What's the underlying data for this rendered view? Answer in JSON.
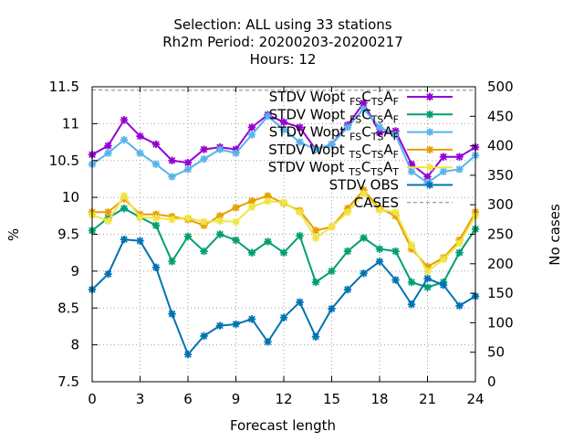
{
  "chart_data": {
    "type": "line",
    "title_lines": [
      "Selection: ALL using    33 stations",
      "Rh2m   Period: 20200203-20200217",
      "Hours:  12"
    ],
    "xlabel": "Forecast length",
    "ylabel": "%",
    "y2label": "No cases",
    "xlim": [
      0,
      24
    ],
    "ylim": [
      7.5,
      11.5
    ],
    "y2lim": [
      0,
      500
    ],
    "xticks": [
      0,
      3,
      6,
      9,
      12,
      15,
      18,
      21,
      24
    ],
    "yticks": [
      7.5,
      8,
      8.5,
      9,
      9.5,
      10,
      10.5,
      11,
      11.5
    ],
    "y2ticks": [
      0,
      50,
      100,
      150,
      200,
      250,
      300,
      350,
      400,
      450,
      500
    ],
    "grid": true,
    "legend_position": "top-right",
    "x": [
      0,
      1,
      2,
      3,
      4,
      5,
      6,
      7,
      8,
      9,
      10,
      11,
      12,
      13,
      14,
      15,
      16,
      17,
      18,
      19,
      20,
      21,
      22,
      23,
      24
    ],
    "series": [
      {
        "legend_main": "STDV Wopt",
        "legend_segments": [
          [
            "FS",
            "sub"
          ],
          [
            "C",
            ""
          ],
          [
            "TS",
            "sub"
          ],
          [
            "A",
            ""
          ],
          [
            "F",
            "sub"
          ]
        ],
        "color": "#9400d3",
        "axis": "y1",
        "values": [
          10.58,
          10.7,
          11.05,
          10.83,
          10.72,
          10.5,
          10.47,
          10.65,
          10.68,
          10.65,
          10.95,
          11.12,
          11.02,
          10.95,
          10.65,
          10.72,
          10.98,
          11.28,
          10.88,
          10.9,
          10.45,
          10.28,
          10.55,
          10.55,
          10.68
        ]
      },
      {
        "legend_main": "STDV Wopt",
        "legend_segments": [
          [
            "FS",
            "sub"
          ],
          [
            "C",
            ""
          ],
          [
            "TS",
            "sub"
          ],
          [
            "A",
            ""
          ],
          [
            "F",
            "sub"
          ]
        ],
        "color": "#009e73",
        "axis": "y1",
        "values": [
          9.55,
          9.72,
          9.85,
          9.73,
          9.62,
          9.13,
          9.47,
          9.27,
          9.5,
          9.42,
          9.25,
          9.4,
          9.25,
          9.48,
          8.85,
          9.0,
          9.27,
          9.45,
          9.3,
          9.27,
          8.85,
          8.78,
          8.85,
          9.25,
          9.57
        ]
      },
      {
        "legend_main": "STDV Wopt",
        "legend_segments": [
          [
            "FS",
            "sub"
          ],
          [
            "C",
            ""
          ],
          [
            "TS",
            "sub"
          ],
          [
            "A",
            ""
          ],
          [
            "F",
            "sub"
          ]
        ],
        "color": "#56b4e9",
        "axis": "y1",
        "values": [
          10.45,
          10.6,
          10.78,
          10.6,
          10.45,
          10.28,
          10.38,
          10.52,
          10.65,
          10.6,
          10.85,
          11.1,
          10.92,
          10.75,
          10.65,
          10.72,
          10.95,
          11.2,
          10.95,
          10.85,
          10.35,
          10.2,
          10.35,
          10.38,
          10.57
        ]
      },
      {
        "legend_main": "STDV Wopt",
        "legend_segments": [
          [
            "TS",
            "sub"
          ],
          [
            "C",
            ""
          ],
          [
            "TS",
            "sub"
          ],
          [
            "A",
            ""
          ],
          [
            "F",
            "sub"
          ]
        ],
        "color": "#e69f00",
        "axis": "y1",
        "values": [
          9.8,
          9.8,
          9.98,
          9.77,
          9.77,
          9.74,
          9.7,
          9.62,
          9.75,
          9.86,
          9.95,
          10.02,
          9.92,
          9.82,
          9.55,
          9.6,
          9.85,
          10.1,
          9.85,
          9.75,
          9.3,
          9.06,
          9.18,
          9.42,
          9.8
        ]
      },
      {
        "legend_main": "STDV Wopt",
        "legend_segments": [
          [
            "TS",
            "sub"
          ],
          [
            "C",
            ""
          ],
          [
            "TS",
            "sub"
          ],
          [
            "A",
            ""
          ],
          [
            "T",
            "sub"
          ]
        ],
        "color": "#f0e442",
        "axis": "y1",
        "values": [
          9.76,
          9.68,
          10.02,
          9.73,
          9.72,
          9.7,
          9.72,
          9.67,
          9.68,
          9.67,
          9.87,
          9.95,
          9.93,
          9.8,
          9.45,
          9.6,
          9.8,
          10.05,
          9.83,
          9.8,
          9.35,
          9.0,
          9.16,
          9.38,
          9.75
        ]
      },
      {
        "legend_main": "STDV OBS",
        "legend_segments": [],
        "color": "#0072b2",
        "axis": "y1",
        "values": [
          8.75,
          8.96,
          9.43,
          9.41,
          9.05,
          8.42,
          7.87,
          8.12,
          8.26,
          8.28,
          8.35,
          8.04,
          8.37,
          8.58,
          8.11,
          8.49,
          8.75,
          8.97,
          9.13,
          8.88,
          8.55,
          8.9,
          8.81,
          8.53,
          8.66
        ]
      },
      {
        "legend_main": "CASES",
        "legend_segments": [],
        "color": "#808080",
        "axis": "y2",
        "dashed": true,
        "values": [
          495,
          494,
          494,
          494,
          494,
          494,
          494,
          494,
          494,
          494,
          494,
          494,
          494,
          494,
          494,
          494,
          494,
          494,
          494,
          494,
          494,
          494,
          494,
          494,
          494
        ]
      }
    ]
  }
}
